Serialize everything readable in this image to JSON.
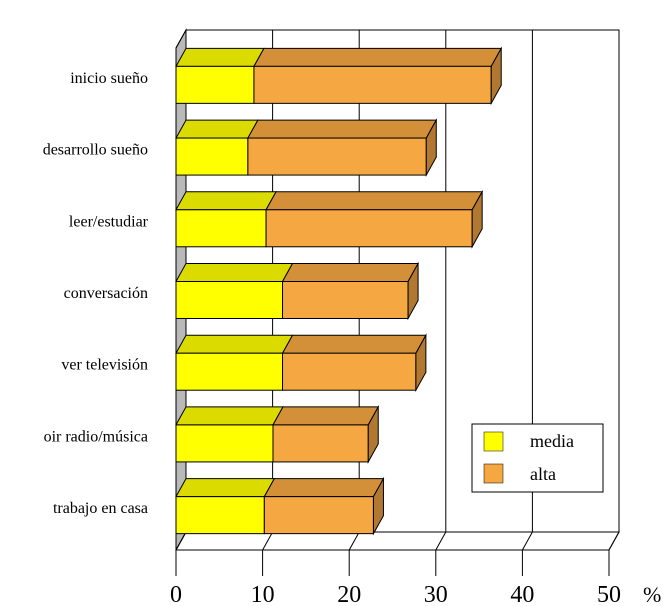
{
  "chart_data": {
    "type": "bar",
    "orientation": "horizontal",
    "stacked": true,
    "three_d": true,
    "categories": [
      "inicio sueño",
      "desarrollo sueño",
      "leer/estudiar",
      "conversación",
      "ver televisión",
      "oir radio/música",
      "trabajo en casa"
    ],
    "series": [
      {
        "name": "media",
        "values": [
          9,
          8.3,
          10.4,
          12.3,
          12.3,
          11.2,
          10.2
        ],
        "color": "#ffff00"
      },
      {
        "name": "alta",
        "values": [
          27.4,
          20.6,
          23.8,
          14.5,
          15.4,
          11,
          12.6
        ],
        "color": "#f5a742"
      }
    ],
    "xlim": [
      0,
      50
    ],
    "x_ticks": [
      0,
      10,
      20,
      30,
      40,
      50
    ],
    "x_unit": "%",
    "grid": true,
    "legend": {
      "position": "bottom-right"
    }
  }
}
